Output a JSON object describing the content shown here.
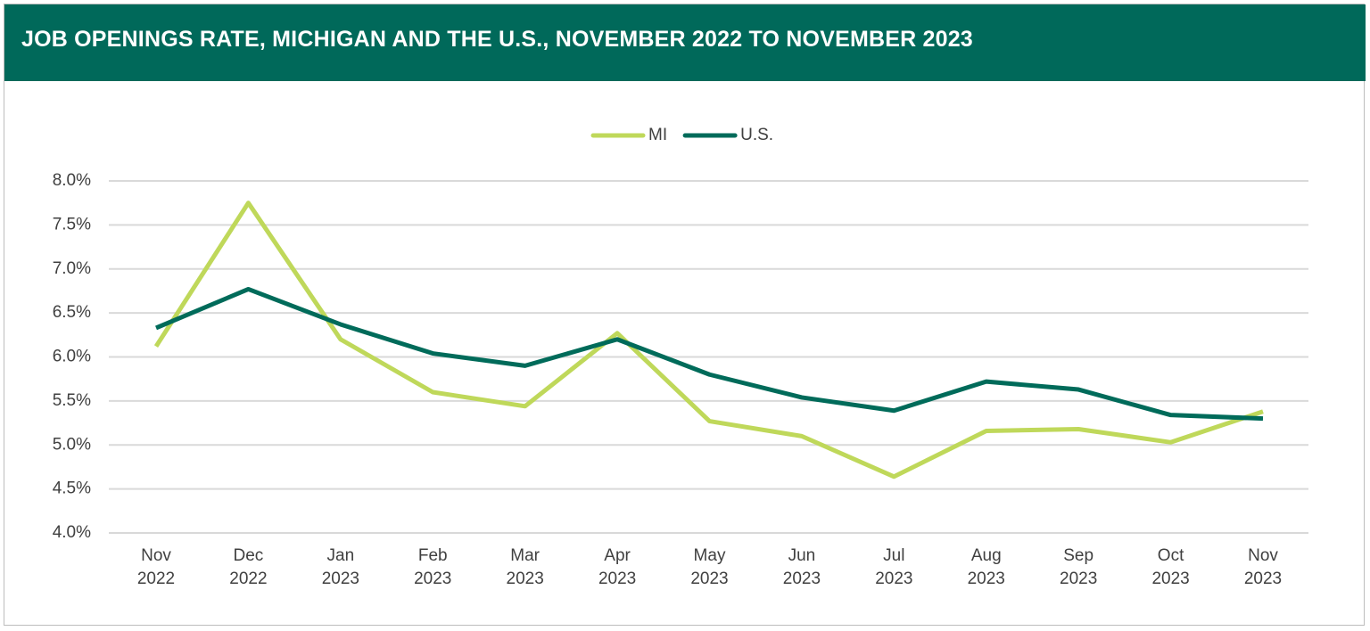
{
  "chart_data": {
    "type": "line",
    "title": "JOB OPENINGS RATE, MICHIGAN AND THE U.S., NOVEMBER 2022 TO NOVEMBER 2023",
    "categories": [
      "Nov 2022",
      "Dec 2022",
      "Jan 2023",
      "Feb 2023",
      "Mar 2023",
      "Apr 2023",
      "May 2023",
      "Jun 2023",
      "Jul 2023",
      "Aug 2023",
      "Sep 2023",
      "Oct 2023",
      "Nov 2023"
    ],
    "series": [
      {
        "name": "MI",
        "color": "#bfd85a",
        "values": [
          6.12,
          7.75,
          6.2,
          5.6,
          5.44,
          6.27,
          5.27,
          5.1,
          4.64,
          5.16,
          5.18,
          5.03,
          5.38
        ]
      },
      {
        "name": "U.S.",
        "color": "#006b5a",
        "values": [
          6.33,
          6.77,
          6.37,
          6.04,
          5.9,
          6.2,
          5.8,
          5.54,
          5.39,
          5.72,
          5.63,
          5.34,
          5.3
        ]
      }
    ],
    "ylim": [
      4.0,
      8.0
    ],
    "yticks": [
      {
        "value": 4.0,
        "label": "4.0%"
      },
      {
        "value": 4.5,
        "label": "4.5%"
      },
      {
        "value": 5.0,
        "label": "5.0%"
      },
      {
        "value": 5.5,
        "label": "5.5%"
      },
      {
        "value": 6.0,
        "label": "6.0%"
      },
      {
        "value": 6.5,
        "label": "6.5%"
      },
      {
        "value": 7.0,
        "label": "7.0%"
      },
      {
        "value": 7.5,
        "label": "7.5%"
      },
      {
        "value": 8.0,
        "label": "8.0%"
      }
    ],
    "grid": true,
    "legend": "top"
  }
}
